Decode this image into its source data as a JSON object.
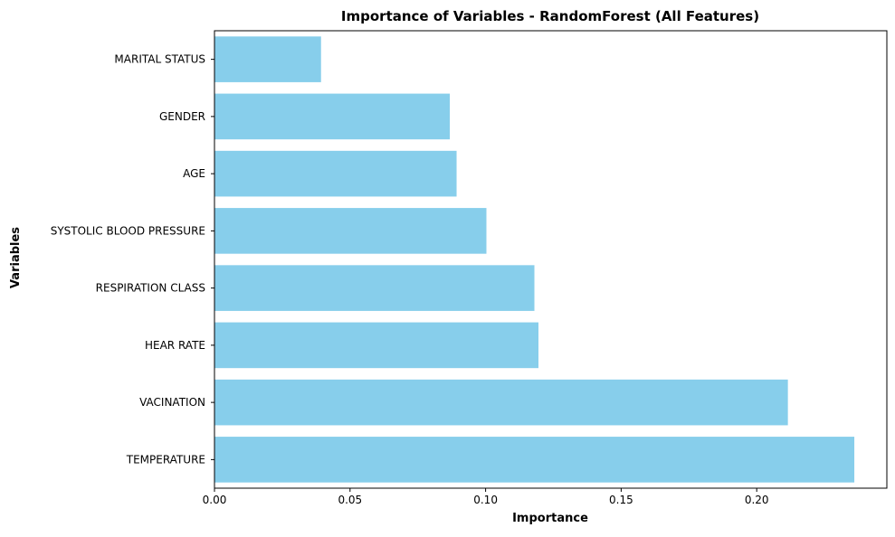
{
  "chart_data": {
    "type": "bar",
    "orientation": "horizontal",
    "title": "Importance of Variables - RandomForest (All Features)",
    "xlabel": "Importance",
    "ylabel": "Variables",
    "categories": [
      "TEMPERATURE",
      "VACINATION",
      "HEAR RATE",
      "RESPIRATION CLASS",
      "SYSTOLIC BLOOD PRESSURE",
      "AGE",
      "GENDER",
      "MARITAL STATUS"
    ],
    "values": [
      0.236,
      0.2115,
      0.1195,
      0.118,
      0.1003,
      0.0893,
      0.0868,
      0.0393
    ],
    "xlim": [
      0,
      0.248
    ],
    "xticks": [
      0.0,
      0.05,
      0.1,
      0.15,
      0.2
    ],
    "xtick_labels": [
      "0.00",
      "0.05",
      "0.10",
      "0.15",
      "0.20"
    ],
    "bar_color": "#87ceeb",
    "grid": false,
    "legend": false
  }
}
